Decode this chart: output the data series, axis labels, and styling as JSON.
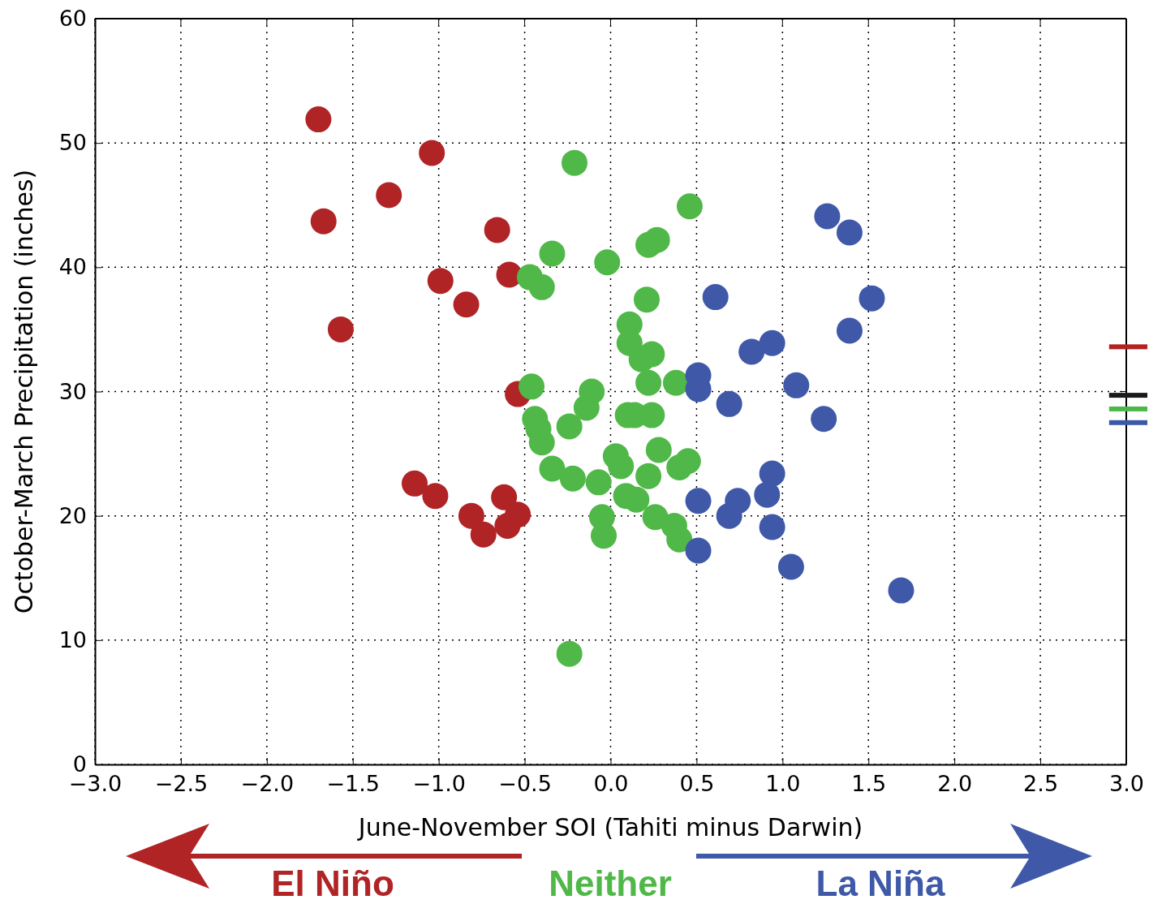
{
  "chart_data": {
    "type": "scatter",
    "xlabel": "June-November SOI (Tahiti minus Darwin)",
    "ylabel": "October-March Precipitation (inches)",
    "xlim": [
      -3,
      3
    ],
    "xticks": [
      {
        "value": -3,
        "label": "−3.0"
      },
      {
        "value": -2.5,
        "label": "−2.5"
      },
      {
        "value": -2,
        "label": "−2.0"
      },
      {
        "value": -1.5,
        "label": "−1.5"
      },
      {
        "value": -1,
        "label": "−1.0"
      },
      {
        "value": -0.5,
        "label": "−0.5"
      },
      {
        "value": 0,
        "label": "0.0"
      },
      {
        "value": 0.5,
        "label": "0.5"
      },
      {
        "value": 1,
        "label": "1.0"
      },
      {
        "value": 1.5,
        "label": "1.5"
      },
      {
        "value": 2,
        "label": "2.0"
      },
      {
        "value": 2.5,
        "label": "2.5"
      },
      {
        "value": 3,
        "label": "3.0"
      }
    ],
    "ylim": [
      0,
      60
    ],
    "yticks": [
      0,
      10,
      20,
      30,
      40,
      50,
      60
    ],
    "grid": true,
    "marker": "circle",
    "series": [
      {
        "color": "#b02426",
        "x": [
          -1.7,
          -1.04,
          -1.29,
          -1.67,
          -0.66,
          -0.59,
          -0.99,
          -0.84,
          -1.57,
          -0.54,
          -1.14,
          -1.02,
          -0.81,
          -0.62,
          -0.54,
          -0.74,
          -0.6
        ],
        "values": [
          51.9,
          49.2,
          45.8,
          43.7,
          43.0,
          39.4,
          38.9,
          37.0,
          35.0,
          29.8,
          22.6,
          21.6,
          20.0,
          21.5,
          20.1,
          18.5,
          19.2
        ]
      },
      {
        "color": "#50b848",
        "x": [
          -0.21,
          0.46,
          -0.24,
          -0.34,
          -0.02,
          0.22,
          0.27,
          -0.47,
          -0.4,
          0.21,
          0.11,
          0.11,
          0.18,
          0.24,
          0.22,
          0.38,
          -0.46,
          -0.11,
          -0.14,
          -0.44,
          -0.42,
          -0.4,
          -0.24,
          0.1,
          0.14,
          0.24,
          0.28,
          0.03,
          0.06,
          -0.34,
          -0.22,
          -0.07,
          0.22,
          0.4,
          0.45,
          0.09,
          0.15,
          0.26,
          0.37,
          0.4,
          -0.05,
          -0.04
        ],
        "values": [
          48.4,
          44.9,
          8.9,
          41.1,
          40.4,
          41.8,
          42.2,
          39.2,
          38.4,
          37.4,
          35.4,
          33.9,
          32.6,
          33.0,
          30.7,
          30.7,
          30.4,
          30.0,
          28.7,
          27.8,
          27.0,
          25.9,
          27.2,
          28.1,
          28.1,
          28.1,
          25.3,
          24.8,
          24.0,
          23.8,
          23.0,
          22.7,
          23.2,
          23.9,
          24.4,
          21.6,
          21.3,
          19.9,
          19.2,
          18.1,
          19.9,
          18.4
        ]
      },
      {
        "type": "line",
        "marker": "none",
        "color": "#b22222",
        "x": [
          2.9,
          3.0
        ],
        "values": [
          33.6,
          33.6
        ]
      },
      {
        "type": "line",
        "marker": "none",
        "color": "#1a1a1a",
        "x": [
          2.9,
          3.0
        ],
        "values": [
          29.7,
          29.7
        ]
      },
      {
        "type": "line",
        "marker": "none",
        "color": "#4db848",
        "x": [
          2.9,
          3.0
        ],
        "values": [
          28.6,
          28.6
        ]
      },
      {
        "type": "line",
        "marker": "none",
        "color": "#3c58a8",
        "x": [
          2.9,
          3.0
        ],
        "values": [
          27.5,
          27.5
        ]
      },
      {
        "color": "#3f59a8",
        "x": [
          1.26,
          1.39,
          0.61,
          1.52,
          1.39,
          0.82,
          0.94,
          0.51,
          0.51,
          1.08,
          0.69,
          1.24,
          0.94,
          0.51,
          0.74,
          0.91,
          0.69,
          0.94,
          0.51,
          1.05,
          1.69
        ],
        "values": [
          44.1,
          42.8,
          37.6,
          37.5,
          34.9,
          33.2,
          33.9,
          31.3,
          30.2,
          30.5,
          29.0,
          27.8,
          23.4,
          21.2,
          21.2,
          21.7,
          20.0,
          19.1,
          17.2,
          15.9,
          14.0
        ]
      }
    ],
    "annotations": [
      "El Niño",
      "Neither",
      "La Niña"
    ]
  }
}
